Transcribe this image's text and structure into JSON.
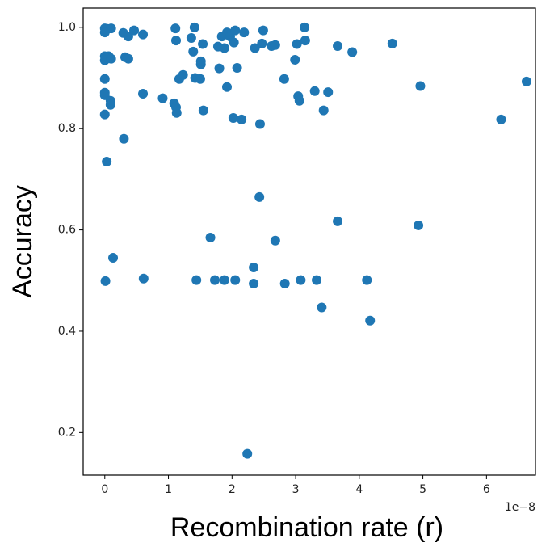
{
  "chart_data": {
    "type": "scatter",
    "x_label": "Recombination rate (r)",
    "y_label": "Accuracy",
    "x_offset_label": "1e−8",
    "color": "#1f77b4",
    "xlim": [
      -0.34,
      6.77
    ],
    "ylim": [
      0.116,
      1.038
    ],
    "xticks": [
      0,
      1,
      2,
      3,
      4,
      5,
      6
    ],
    "yticks": [
      0.2,
      0.4,
      0.6,
      0.8,
      {
        "value": 1.0,
        "label": "1.0"
      }
    ],
    "x": [
      0,
      0.04,
      0.1,
      0,
      0,
      0.06,
      0,
      0.1,
      0,
      0,
      0,
      0.09,
      0.09,
      0,
      0.01,
      0.03,
      0.13,
      0.29,
      0.37,
      0.46,
      0.6,
      0.32,
      0.37,
      0.3,
      0.6,
      0.61,
      0.91,
      1.11,
      1.12,
      1.09,
      1.12,
      1.13,
      1.17,
      1.23,
      1.36,
      1.39,
      1.41,
      1.42,
      1.5,
      1.51,
      1.51,
      1.54,
      1.55,
      1.44,
      1.66,
      1.73,
      1.78,
      1.8,
      1.84,
      1.88,
      1.92,
      1.88,
      1.92,
      1.97,
      2.03,
      2.05,
      2.02,
      2.08,
      2.15,
      2.19,
      2.05,
      2.24,
      2.36,
      2.44,
      2.47,
      2.49,
      2.62,
      2.68,
      2.43,
      2.34,
      2.34,
      2.68,
      2.82,
      2.83,
      2.99,
      3.02,
      3.04,
      3.06,
      3.14,
      3.15,
      3.08,
      3.33,
      3.3,
      3.41,
      3.44,
      3.51,
      3.66,
      3.66,
      3.89,
      4.12,
      4.17,
      4.52,
      4.96,
      4.93,
      6.23,
      6.63
    ],
    "y": [
      0.998,
      0.997,
      0.998,
      0.99,
      0.943,
      0.943,
      0.935,
      0.938,
      0.898,
      0.871,
      0.866,
      0.855,
      0.847,
      0.828,
      0.499,
      0.735,
      0.545,
      0.989,
      0.982,
      0.994,
      0.986,
      0.941,
      0.938,
      0.78,
      0.869,
      0.504,
      0.86,
      0.998,
      0.974,
      0.85,
      0.842,
      0.831,
      0.898,
      0.906,
      0.979,
      0.952,
      1.0,
      0.9,
      0.898,
      0.927,
      0.933,
      0.967,
      0.836,
      0.501,
      0.585,
      0.501,
      0.962,
      0.919,
      0.982,
      0.959,
      0.99,
      0.501,
      0.882,
      0.982,
      0.97,
      0.994,
      0.821,
      0.92,
      0.818,
      0.99,
      0.501,
      0.158,
      0.959,
      0.809,
      0.968,
      0.994,
      0.963,
      0.965,
      0.665,
      0.494,
      0.526,
      0.579,
      0.898,
      0.494,
      0.936,
      0.967,
      0.864,
      0.855,
      1.0,
      0.974,
      0.501,
      0.501,
      0.874,
      0.447,
      0.836,
      0.872,
      0.963,
      0.617,
      0.951,
      0.501,
      0.421,
      0.968,
      0.884,
      0.609,
      0.818,
      0.893
    ]
  }
}
